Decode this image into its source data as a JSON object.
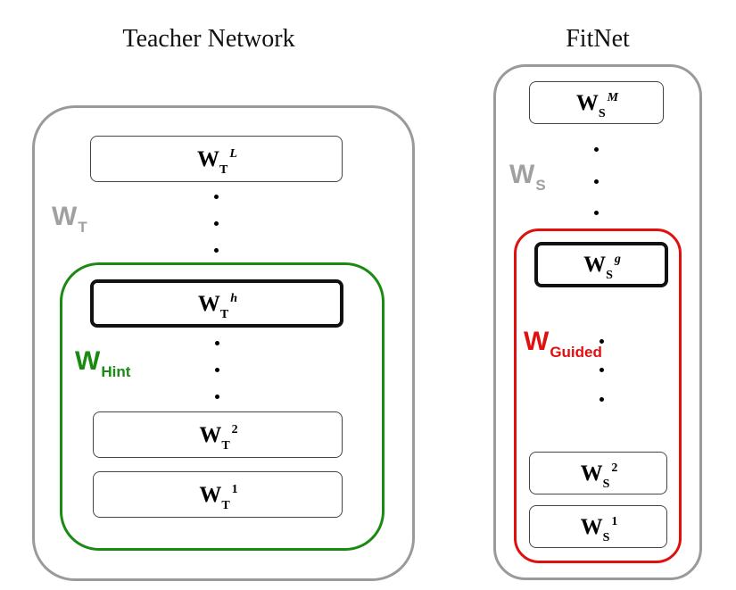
{
  "teacher": {
    "title": "Teacher Network",
    "group_label": {
      "main": "W",
      "sub": "T"
    },
    "hint_label": {
      "main": "W",
      "sub": "Hint"
    },
    "layers": {
      "top": {
        "main": "W",
        "sub": "T",
        "sup": "L"
      },
      "hint": {
        "main": "W",
        "sub": "T",
        "sup": "h"
      },
      "second": {
        "main": "W",
        "sub": "T",
        "sup": "2"
      },
      "first": {
        "main": "W",
        "sub": "T",
        "sup": "1"
      }
    }
  },
  "student": {
    "title": "FitNet",
    "group_label": {
      "main": "W",
      "sub": "S"
    },
    "guided_label": {
      "main": "W",
      "sub": "Guided"
    },
    "layers": {
      "top": {
        "main": "W",
        "sub": "S",
        "sup": "M"
      },
      "guided": {
        "main": "W",
        "sub": "S",
        "sup": "g"
      },
      "second": {
        "main": "W",
        "sub": "S",
        "sup": "2"
      },
      "first": {
        "main": "W",
        "sub": "S",
        "sup": "1"
      }
    }
  },
  "colors": {
    "outer_frame": "#9a9a9a",
    "hint_frame": "#1a8a12",
    "guided_frame": "#e01010",
    "group_label": "#a0a0a0",
    "hint_label": "#1a8a12",
    "guided_label": "#e01010"
  }
}
